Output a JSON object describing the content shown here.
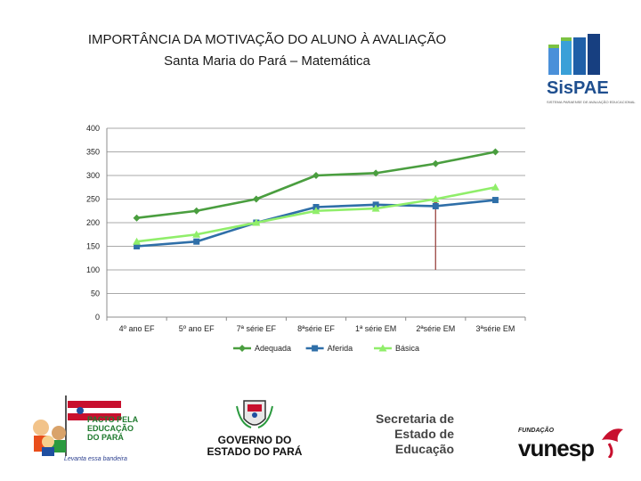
{
  "title": "IMPORTÂNCIA DA MOTIVAÇÃO DO ALUNO À AVALIAÇÃO",
  "subtitle": "Santa Maria do Pará – Matemática",
  "chart_data": {
    "type": "line",
    "categories": [
      "4º ano EF",
      "5º ano EF",
      "7ª série EF",
      "8ªsérie EF",
      "1ª série EM",
      "2ªsérie EM",
      "3ªsérie EM"
    ],
    "series": [
      {
        "name": "Adequada",
        "color": "#4a9e3f",
        "marker": "diamond",
        "values": [
          210,
          225,
          250,
          300,
          305,
          325,
          350
        ]
      },
      {
        "name": "Aferida",
        "color": "#2f6fa8",
        "marker": "square",
        "values": [
          150,
          160,
          200,
          233,
          238,
          235,
          248
        ]
      },
      {
        "name": "Básica",
        "color": "#90ee6a",
        "marker": "triangle",
        "values": [
          160,
          175,
          200,
          225,
          230,
          250,
          275
        ]
      }
    ],
    "ylim": [
      0,
      400
    ],
    "yticks": [
      "0",
      "50",
      "100",
      "150",
      "200",
      "250",
      "300",
      "350",
      "400"
    ],
    "annotation": {
      "category_index": 5,
      "from": 100,
      "to": 250,
      "color": "#a0524d"
    },
    "legend_position": "bottom"
  },
  "logos": {
    "sispae": {
      "name": "SisPAE",
      "tagline": "SISTEMA PARAENSE DE AVALIAÇÃO EDUCACIONAL"
    },
    "pacto": {
      "lines": [
        "PACTO PELA",
        "EDUCAÇÃO",
        "DO PARÁ"
      ],
      "slogan": "Levanta essa bandeira"
    },
    "governo": {
      "lines": [
        "GOVERNO DO",
        "ESTADO DO PARÁ"
      ]
    },
    "secretaria": {
      "lines": [
        "Secretaria de",
        "Estado de",
        "Educação"
      ]
    },
    "vunesp": {
      "fundacao": "FUNDAÇÃO",
      "name": "vunesp"
    }
  }
}
